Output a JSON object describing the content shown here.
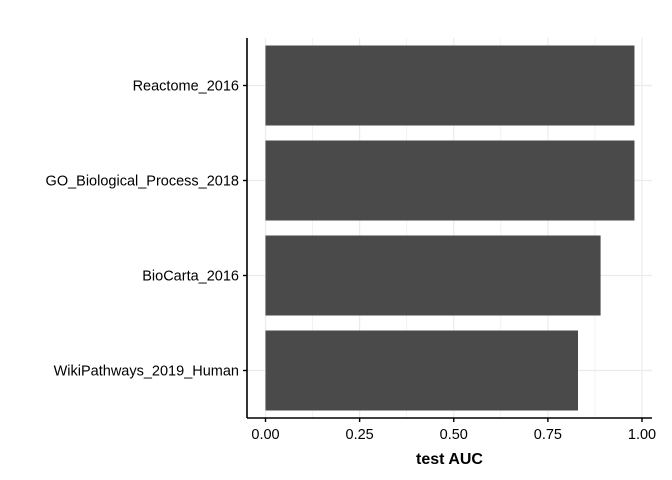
{
  "chart_data": {
    "type": "bar",
    "orientation": "horizontal",
    "categories": [
      "Reactome_2016",
      "GO_Biological_Process_2018",
      "BioCarta_2016",
      "WikiPathways_2019_Human"
    ],
    "values": [
      0.98,
      0.98,
      0.89,
      0.83
    ],
    "xlabel": "test AUC",
    "ylabel": "",
    "xlim": [
      0,
      1
    ],
    "xticks": [
      0,
      0.25,
      0.5,
      0.75,
      1
    ],
    "xtick_labels": [
      "0.00",
      "0.25",
      "0.50",
      "0.75",
      "1.00"
    ],
    "bar_color": "#4a4a4a",
    "grid": true,
    "grid_color": "#ebebeb",
    "background_color": "#ffffff",
    "axis_color": "#000000"
  }
}
